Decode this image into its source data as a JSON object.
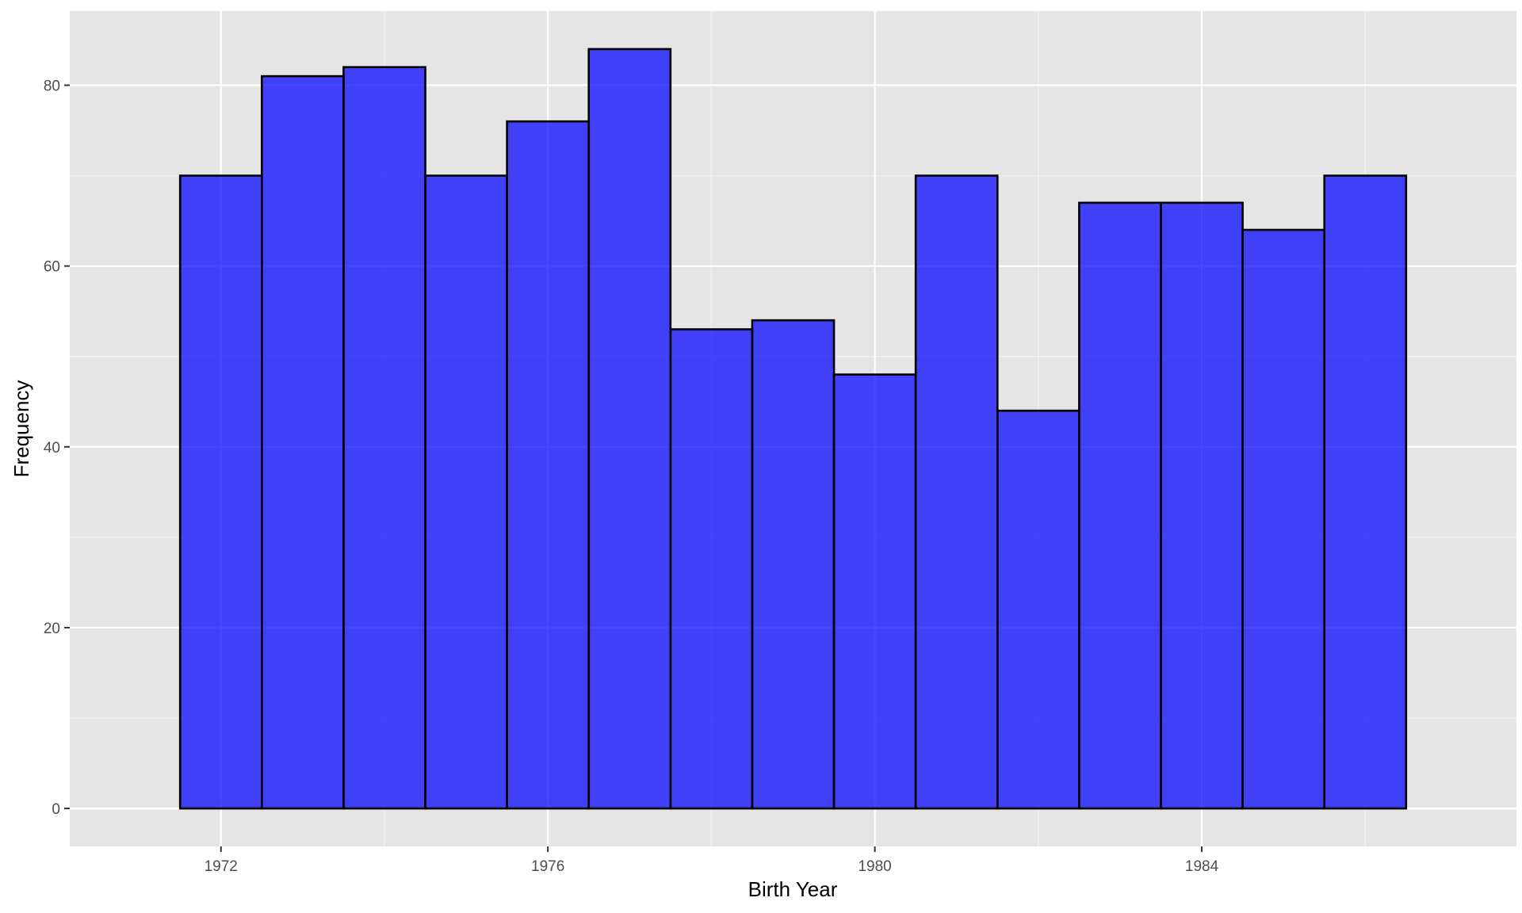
{
  "chart_data": {
    "type": "bar",
    "subtype": "histogram",
    "xlabel": "Birth Year",
    "ylabel": "Frequency",
    "bin_width": 1,
    "bin_centers": [
      1972,
      1973,
      1974,
      1975,
      1976,
      1977,
      1978,
      1979,
      1980,
      1981,
      1982,
      1983,
      1984,
      1985,
      1986
    ],
    "values": [
      70,
      81,
      82,
      70,
      76,
      84,
      53,
      54,
      48,
      70,
      44,
      67,
      67,
      64,
      70
    ],
    "xlim": [
      1970.15,
      1987.85
    ],
    "ylim": [
      -4.2,
      88.2
    ],
    "x_ticks": [
      1972,
      1976,
      1980,
      1984
    ],
    "x_tick_labels": [
      "1972",
      "1976",
      "1980",
      "1984"
    ],
    "y_ticks": [
      0,
      20,
      40,
      60,
      80
    ],
    "y_tick_labels": [
      "0",
      "20",
      "40",
      "60",
      "80"
    ],
    "grid": true,
    "legend": "none",
    "colors": {
      "bar_fill": "#0000ff",
      "bar_fill_opacity": 0.72,
      "bar_outline": "#000000",
      "panel_background": "#e5e5e5",
      "grid_major": "#ffffff",
      "grid_minor": "#f2f2f2"
    }
  }
}
